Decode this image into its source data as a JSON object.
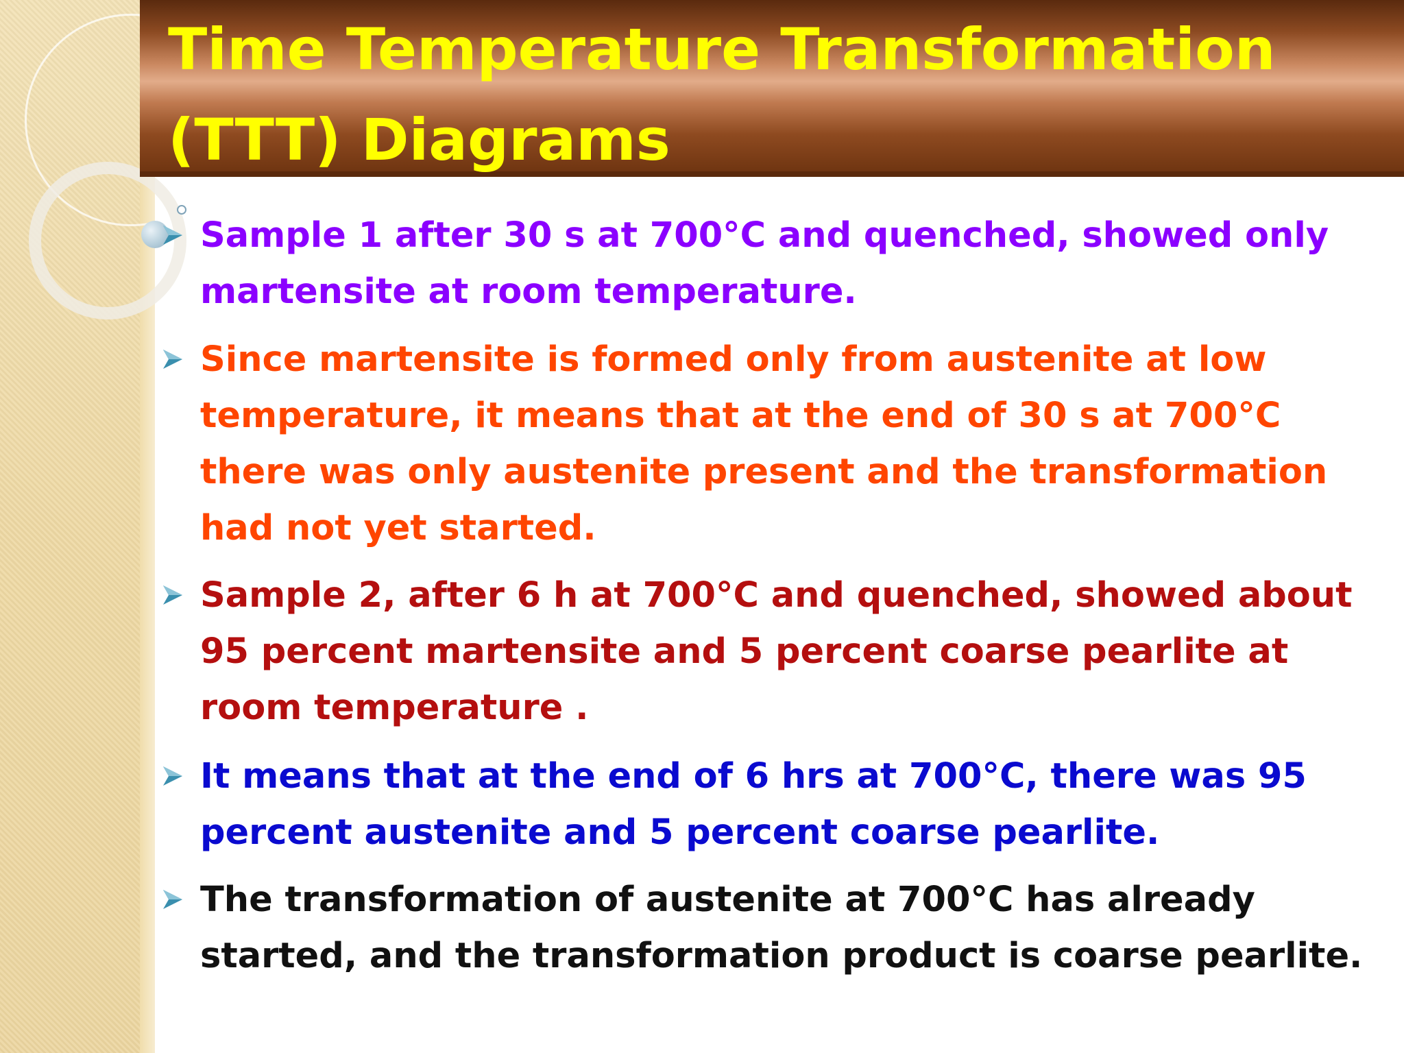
{
  "slide": {
    "title_line1": "Time Temperature Transformation",
    "title_line2": "(TTT) Diagrams",
    "bullets": [
      {
        "text": "Sample 1  after 30 s at  700°C and quenched,  showed only martensite at room temperature.",
        "color": "#8b00ff"
      },
      {
        "text": "Since martensite is formed only from austenite at low temperature, it means that at the end of 30 s at 700°C there was only austenite present and the transformation had not yet started.",
        "color": "#ff4500"
      },
      {
        "text": "Sample 2, after 6 h at 700°C and quenched, showed about 95 percent martensite and 5 percent coarse pearlite at room temperature .",
        "color": "#b40f0f"
      },
      {
        "text": "It means that at the end of 6 hrs at 700°C, there was 95 percent austenite and 5 percent coarse pearlite.",
        "color": "#0a0acf"
      },
      {
        "text": "The transformation of austenite at 700°C has already started, and the transformation product is coarse pearlite.",
        "color": "#111111"
      }
    ],
    "bullet_icon": "arrow-bullet-icon",
    "colors": {
      "title": "#ffff00",
      "banner": "#8c4a22",
      "bullet_icon": "#3a8fae"
    }
  }
}
